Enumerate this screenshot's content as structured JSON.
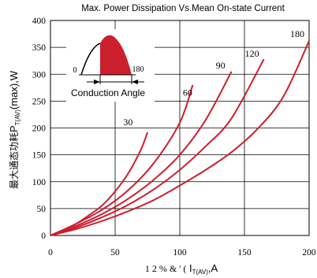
{
  "chart_data": {
    "type": "line",
    "title": "Max. Power Dissipation Vs.Mean On-state Current",
    "ylabel_cjk": "最大通态功耗",
    "ylabel_main": "P",
    "ylabel_sub": "T(AV)",
    "ylabel_tail": "(max),W",
    "xlabel_garbled": "1 2 % & ' (",
    "xlabel_main": "I",
    "xlabel_sub": "T(AV)",
    "xlabel_tail": ",A",
    "xlim": [
      0,
      200
    ],
    "ylim": [
      0,
      400
    ],
    "xticks": [
      "0",
      "50",
      "100",
      "150",
      "200"
    ],
    "yticks": [
      "0",
      "50",
      "100",
      "150",
      "200",
      "250",
      "300",
      "350",
      "400"
    ],
    "grid": true,
    "series": [
      {
        "name": "30",
        "x": [
          0,
          10,
          20,
          30,
          40,
          50,
          60,
          70,
          75
        ],
        "y": [
          0,
          10,
          22,
          38,
          56,
          82,
          115,
          160,
          192
        ]
      },
      {
        "name": "60",
        "x": [
          0,
          20,
          40,
          60,
          80,
          100,
          110
        ],
        "y": [
          0,
          22,
          48,
          84,
          135,
          210,
          280
        ]
      },
      {
        "name": "90",
        "x": [
          0,
          20,
          40,
          60,
          80,
          100,
          120,
          140
        ],
        "y": [
          0,
          18,
          40,
          68,
          104,
          150,
          215,
          305
        ]
      },
      {
        "name": "120",
        "x": [
          0,
          20,
          40,
          60,
          80,
          100,
          120,
          140,
          165
        ],
        "y": [
          0,
          15,
          34,
          57,
          86,
          122,
          166,
          218,
          328
        ]
      },
      {
        "name": "180",
        "x": [
          0,
          20,
          40,
          60,
          80,
          100,
          120,
          140,
          160,
          180,
          200
        ],
        "y": [
          0,
          12,
          27,
          45,
          66,
          93,
          122,
          155,
          198,
          258,
          362
        ]
      }
    ],
    "inset": {
      "label_start": "0",
      "label_end": "180",
      "caption": "Conduction Angle"
    },
    "line_color": "#cc1f2e"
  }
}
